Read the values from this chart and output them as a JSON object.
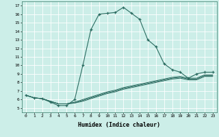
{
  "xlabel": "Humidex (Indice chaleur)",
  "xlim": [
    -0.5,
    23.5
  ],
  "ylim": [
    4.5,
    17.5
  ],
  "yticks": [
    5,
    6,
    7,
    8,
    9,
    10,
    11,
    12,
    13,
    14,
    15,
    16,
    17
  ],
  "xticks": [
    0,
    1,
    2,
    3,
    4,
    5,
    6,
    7,
    8,
    9,
    10,
    11,
    12,
    13,
    14,
    15,
    16,
    17,
    18,
    19,
    20,
    21,
    22,
    23
  ],
  "bg_color": "#cceee8",
  "line_color": "#2a6b60",
  "main_series": [
    6.5,
    6.2,
    6.1,
    5.7,
    5.3,
    5.3,
    6.0,
    10.0,
    14.2,
    16.0,
    16.1,
    16.2,
    16.8,
    16.1,
    15.4,
    13.0,
    12.2,
    10.2,
    9.5,
    9.2,
    8.5,
    9.0,
    9.2,
    9.2
  ],
  "flat_series": [
    [
      6.5,
      6.2,
      6.1,
      5.8,
      5.5,
      5.5,
      5.6,
      5.8,
      6.1,
      6.4,
      6.7,
      6.9,
      7.2,
      7.4,
      7.6,
      7.8,
      8.0,
      8.2,
      8.4,
      8.5,
      8.3,
      8.3,
      8.7,
      8.7
    ],
    [
      6.5,
      6.2,
      6.1,
      5.8,
      5.5,
      5.5,
      5.6,
      5.9,
      6.2,
      6.5,
      6.8,
      7.0,
      7.3,
      7.5,
      7.7,
      7.9,
      8.1,
      8.3,
      8.5,
      8.6,
      8.4,
      8.4,
      8.8,
      8.8
    ],
    [
      6.5,
      6.2,
      6.1,
      5.8,
      5.5,
      5.5,
      5.7,
      6.0,
      6.3,
      6.6,
      6.9,
      7.1,
      7.4,
      7.6,
      7.8,
      8.0,
      8.2,
      8.4,
      8.6,
      8.7,
      8.5,
      8.5,
      8.9,
      8.9
    ]
  ]
}
